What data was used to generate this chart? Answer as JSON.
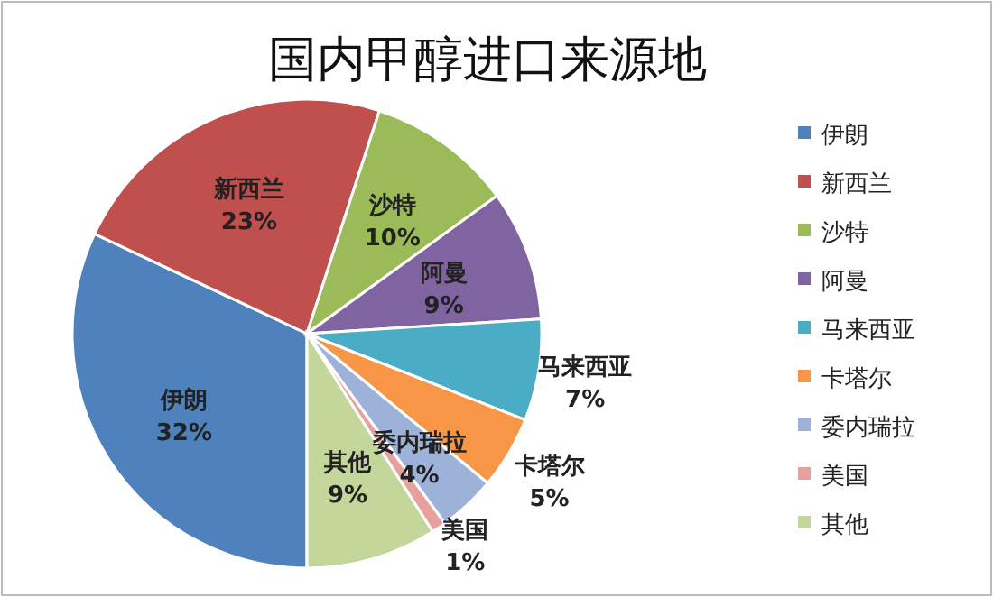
{
  "chart_data": {
    "type": "pie",
    "title": "国内甲醇进口来源地",
    "categories": [
      "伊朗",
      "新西兰",
      "沙特",
      "阿曼",
      "马来西亚",
      "卡塔尔",
      "委内瑞拉",
      "美国",
      "其他"
    ],
    "values": [
      32,
      23,
      10,
      9,
      7,
      5,
      4,
      1,
      9
    ],
    "colors": [
      "#4f81bd",
      "#c0504d",
      "#9bbb59",
      "#8064a2",
      "#4bacc6",
      "#f79646",
      "#9db2d8",
      "#e6a09e",
      "#c4d79b"
    ],
    "value_labels": [
      "32%",
      "23%",
      "10%",
      "9%",
      "7%",
      "5%",
      "4%",
      "1%",
      "9%"
    ],
    "legend": "right"
  }
}
